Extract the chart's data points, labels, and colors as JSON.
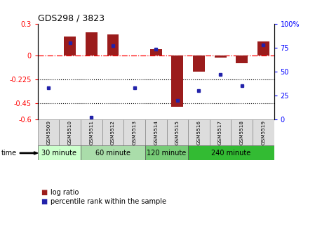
{
  "title": "GDS298 / 3823",
  "samples": [
    "GSM5509",
    "GSM5510",
    "GSM5511",
    "GSM5512",
    "GSM5513",
    "GSM5514",
    "GSM5515",
    "GSM5516",
    "GSM5517",
    "GSM5518",
    "GSM5519"
  ],
  "log_ratio": [
    0.0,
    0.18,
    0.22,
    0.2,
    0.0,
    0.06,
    -0.48,
    -0.15,
    -0.02,
    -0.07,
    0.13
  ],
  "percentile": [
    33,
    80,
    2,
    77,
    33,
    73,
    20,
    30,
    47,
    35,
    78
  ],
  "ylim_left": [
    -0.6,
    0.3
  ],
  "ylim_right": [
    0,
    100
  ],
  "yticks_left": [
    -0.6,
    -0.45,
    -0.225,
    0.0,
    0.3
  ],
  "ytick_labels_left": [
    "-0.6",
    "-0.45",
    "-0.225",
    "0",
    "0.3"
  ],
  "yticks_right": [
    0,
    25,
    50,
    75,
    100
  ],
  "ytick_labels_right": [
    "0",
    "25",
    "50",
    "75",
    "100%"
  ],
  "hline_y": 0.0,
  "dotted_lines": [
    -0.225,
    -0.45
  ],
  "bar_color": "#9B1C1C",
  "dot_color": "#2222AA",
  "time_groups": [
    {
      "label": "30 minute",
      "start": 0,
      "end": 1,
      "color": "#ccffcc"
    },
    {
      "label": "60 minute",
      "start": 2,
      "end": 4,
      "color": "#aaddaa"
    },
    {
      "label": "120 minute",
      "start": 5,
      "end": 6,
      "color": "#88cc88"
    },
    {
      "label": "240 minute",
      "start": 7,
      "end": 10,
      "color": "#44bb44"
    }
  ],
  "time_label": "time",
  "legend_bar_label": "log ratio",
  "legend_dot_label": "percentile rank within the sample",
  "bar_width": 0.55
}
